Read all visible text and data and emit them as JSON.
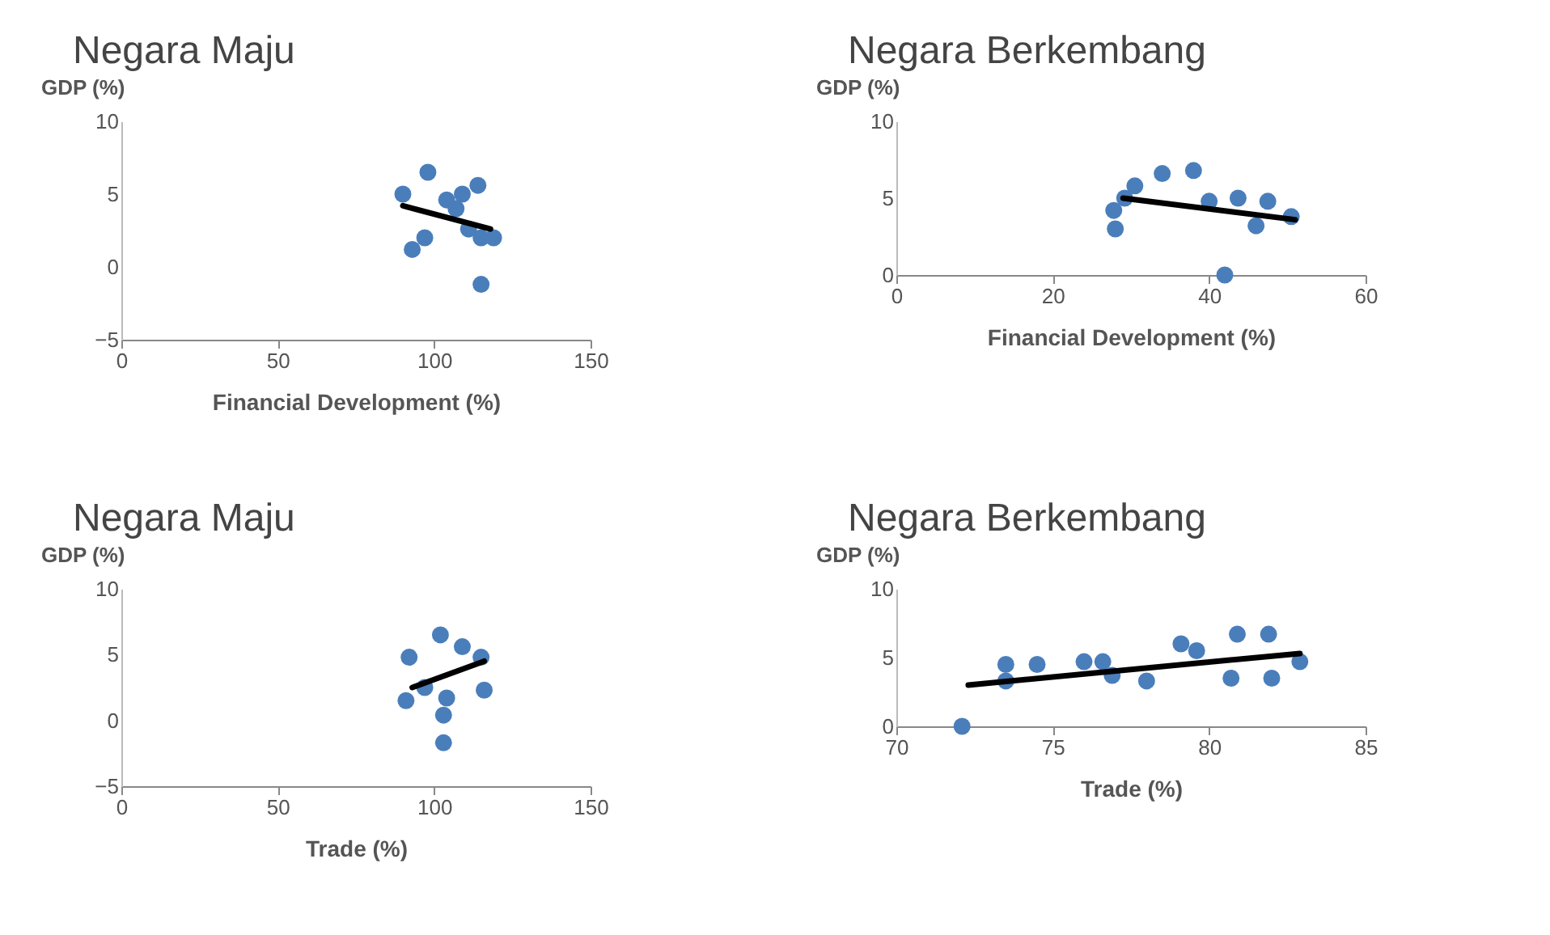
{
  "chart_data": [
    {
      "type": "scatter",
      "title": "Negara Maju",
      "xlabel": "Financial Development (%)",
      "ylabel": "GDP (%)",
      "xlim": [
        0,
        150
      ],
      "xticks": [
        0,
        50,
        100,
        150
      ],
      "ylim": [
        -5,
        10
      ],
      "yticks": [
        -5,
        0,
        5,
        10
      ],
      "series": [
        {
          "marker": "circle",
          "color": "#4a7ebb",
          "x": [
            90,
            98,
            94,
            93,
            104,
            109,
            114,
            111,
            115,
            119,
            115,
            107,
            97
          ],
          "values": [
            5,
            6.5,
            null,
            1.2,
            4.6,
            5,
            5.6,
            2.6,
            2,
            2,
            -1.2,
            4,
            2
          ]
        },
        {
          "type": "line",
          "color": "#000000",
          "x": [
            90,
            118
          ],
          "values": [
            4.2,
            2.6
          ]
        }
      ]
    },
    {
      "type": "scatter",
      "title": "Negara Berkembang",
      "xlabel": "Financial Development (%)",
      "ylabel": "GDP (%)",
      "xlim": [
        0,
        60
      ],
      "xticks": [
        0,
        20,
        40,
        60
      ],
      "ylim": [
        0,
        10
      ],
      "yticks": [
        0,
        5,
        10
      ],
      "series": [
        {
          "marker": "circle",
          "color": "#4a7ebb",
          "x": [
            27.8,
            28,
            29.2,
            30.5,
            34,
            38,
            40,
            42,
            43.7,
            46,
            47.5,
            50.5
          ],
          "values": [
            4.2,
            3,
            5,
            5.8,
            6.6,
            6.8,
            4.8,
            0,
            5,
            3.2,
            4.8,
            3.8
          ]
        },
        {
          "type": "line",
          "color": "#000000",
          "x": [
            29,
            51
          ],
          "values": [
            5.0,
            3.6
          ]
        }
      ]
    },
    {
      "type": "scatter",
      "title": "Negara Maju",
      "xlabel": "Trade (%)",
      "ylabel": "GDP (%)",
      "xlim": [
        0,
        150
      ],
      "xticks": [
        0,
        50,
        100,
        150
      ],
      "ylim": [
        -5,
        10
      ],
      "yticks": [
        -5,
        0,
        5,
        10
      ],
      "series": [
        {
          "marker": "circle",
          "color": "#4a7ebb",
          "x": [
            92,
            91,
            102,
            109,
            115,
            116,
            103,
            103,
            104,
            97
          ],
          "values": [
            4.8,
            1.5,
            6.5,
            5.6,
            4.8,
            2.3,
            0.4,
            -1.7,
            1.7,
            2.5
          ]
        },
        {
          "type": "line",
          "color": "#000000",
          "x": [
            93,
            116
          ],
          "values": [
            2.5,
            4.5
          ]
        }
      ]
    },
    {
      "type": "scatter",
      "title": "Negara Berkembang",
      "xlabel": "Trade (%)",
      "ylabel": "GDP (%)",
      "xlim": [
        70,
        85
      ],
      "xticks": [
        70,
        75,
        80,
        85
      ],
      "ylim": [
        0,
        10
      ],
      "yticks": [
        0,
        5,
        10
      ],
      "series": [
        {
          "marker": "circle",
          "color": "#4a7ebb",
          "x": [
            72.1,
            73.5,
            73.5,
            74.5,
            76,
            76.6,
            76.9,
            78,
            79.1,
            79.6,
            80.7,
            80.9,
            81.9,
            82,
            82.9
          ],
          "values": [
            0,
            4.5,
            3.3,
            4.5,
            4.7,
            4.7,
            3.7,
            3.3,
            6,
            5.5,
            3.5,
            6.7,
            6.7,
            3.5,
            4.7
          ]
        },
        {
          "type": "line",
          "color": "#000000",
          "x": [
            72.3,
            82.9
          ],
          "values": [
            3.0,
            5.3
          ]
        }
      ]
    }
  ]
}
